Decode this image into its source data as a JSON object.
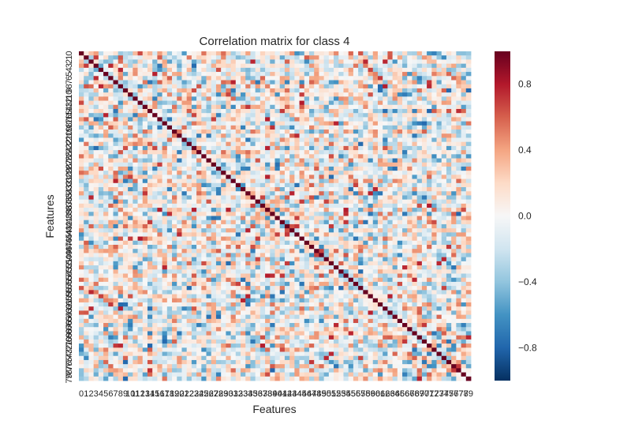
{
  "chart_data": {
    "type": "heatmap",
    "title": "Correlation matrix for class 4",
    "xlabel": "Features",
    "ylabel": "Features",
    "n_features": 80,
    "feature_labels": [
      "0",
      "1",
      "2",
      "3",
      "4",
      "5",
      "6",
      "7",
      "8",
      "9",
      "10",
      "11",
      "12",
      "13",
      "14",
      "15",
      "16",
      "17",
      "18",
      "19",
      "20",
      "21",
      "22",
      "23",
      "24",
      "25",
      "26",
      "27",
      "28",
      "29",
      "30",
      "31",
      "32",
      "33",
      "34",
      "35",
      "36",
      "37",
      "38",
      "39",
      "40",
      "41",
      "42",
      "43",
      "44",
      "45",
      "46",
      "47",
      "48",
      "49",
      "50",
      "51",
      "52",
      "53",
      "54",
      "55",
      "56",
      "57",
      "58",
      "59",
      "60",
      "61",
      "62",
      "63",
      "64",
      "65",
      "66",
      "67",
      "68",
      "69",
      "70",
      "71",
      "72",
      "73",
      "74",
      "75",
      "76",
      "77",
      "78",
      "79"
    ],
    "value_range": [
      -1,
      1
    ],
    "diagonal_value": 1.0,
    "colormap": "RdBu_r",
    "colors": {
      "low": "#053061",
      "mid": "#f7f7f7",
      "high": "#67001f"
    },
    "colorbar": {
      "ticks": [
        0.8,
        0.4,
        0.0,
        -0.4,
        -0.8
      ],
      "tick_labels": [
        "0.8",
        "0.4",
        "0.0",
        "−0.4",
        "−0.8"
      ]
    },
    "grid": false,
    "note_values": "Off-diagonal correlations mostly in range -0.6 to 0.6; individual cell values not legible at this resolution"
  }
}
